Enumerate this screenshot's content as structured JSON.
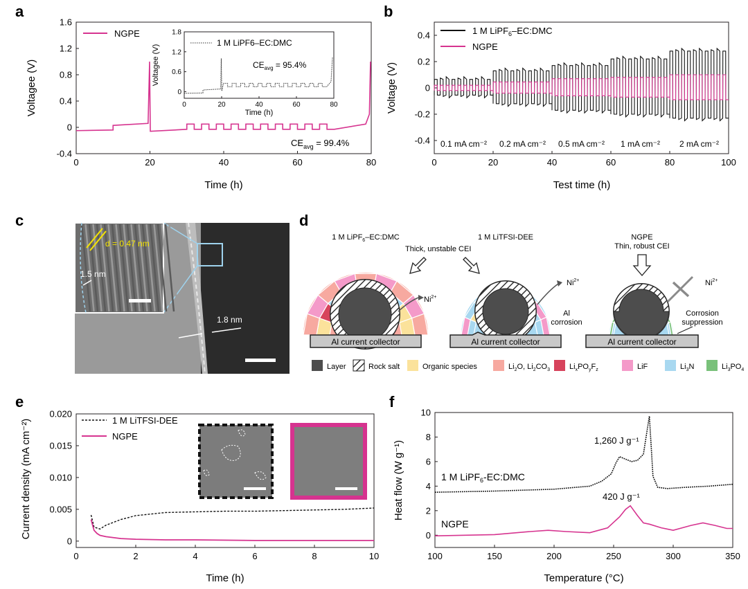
{
  "panels": {
    "a": {
      "letter": "a",
      "chart_data": {
        "type": "line",
        "xlabel": "Time (h)",
        "ylabel": "Voltagee (V)",
        "xlim": [
          0,
          80
        ],
        "ylim": [
          -0.4,
          1.6
        ],
        "xticks": [
          "0",
          "20",
          "40",
          "60",
          "80"
        ],
        "yticks": [
          "-0.4",
          "0",
          "0.4",
          "0.8",
          "1.2",
          "1.6"
        ],
        "legend": "NGPE",
        "annotation_main": "CE",
        "annotation_sub": "avg",
        "annotation_value": " = 99.4%",
        "series": [
          {
            "name": "NGPE",
            "color": "#d6338f",
            "style": "solid"
          }
        ],
        "inset": {
          "legend": "1 M LiPF6–EC:DMC",
          "xlabel": "Time (h)",
          "ylabel": "Voltagee (V)",
          "xlim": [
            0,
            80
          ],
          "ylim": [
            -0.2,
            1.8
          ],
          "xticks": [
            "0",
            "20",
            "40",
            "60",
            "80"
          ],
          "yticks": [
            "0",
            "0.6",
            "1.2",
            "1.8"
          ],
          "annotation_main": "CE",
          "annotation_sub": "avg",
          "annotation_value": " = 95.4%"
        }
      }
    },
    "b": {
      "letter": "b",
      "chart_data": {
        "type": "line",
        "xlabel": "Test time (h)",
        "ylabel": "Voltage (V)",
        "xlim": [
          0,
          100
        ],
        "ylim": [
          -0.5,
          0.5
        ],
        "xticks": [
          "0",
          "20",
          "40",
          "60",
          "80",
          "100"
        ],
        "yticks": [
          "-0.4",
          "-0.2",
          "0",
          "0.2",
          "0.4"
        ],
        "series": [
          {
            "name": "1 M LiPF6–EC:DMC",
            "color": "#111111",
            "style": "solid"
          },
          {
            "name": "NGPE",
            "color": "#d6338f",
            "style": "solid"
          }
        ],
        "rate_labels": [
          "0.1 mA cm⁻²",
          "0.2 mA cm⁻²",
          "0.5 mA cm⁻²",
          "1 mA cm⁻²",
          "2 mA cm⁻²"
        ]
      }
    },
    "c": {
      "letter": "c",
      "d_label": "d = 0.47 nm",
      "thin_label": "1.5 nm",
      "thick_label": "1.8 nm"
    },
    "d": {
      "letter": "d",
      "p1_title": "1 M LiPF6–EC:DMC",
      "p1_note": "Thick, unstable CEI",
      "p2_title": "1 M LiTFSI-DEE",
      "p3_title": "NGPE",
      "p3_note": "Thin, robust CEI",
      "ni": "Ni",
      "ni_sup": "2+",
      "al_corrosion_1": "Al",
      "al_corrosion_2": "corrosion",
      "suppression_1": "Corrosion",
      "suppression_2": "suppression",
      "collector": "Al current collector",
      "legend": [
        {
          "label": "Layer",
          "color": "#4d4d4d"
        },
        {
          "label": "Rock salt",
          "color": "hatch"
        },
        {
          "label": "Organic species",
          "color": "#fbe29b"
        },
        {
          "label": "Li2O, Li2CO3",
          "color": "#f7a9a0"
        },
        {
          "label": "LixPOyFz",
          "color": "#d7435c"
        },
        {
          "label": "LiF",
          "color": "#f49ac9"
        },
        {
          "label": "Li3N",
          "color": "#a8d8f0"
        },
        {
          "label": "Li3PO4",
          "color": "#79c17a"
        }
      ]
    },
    "e": {
      "letter": "e",
      "chart_data": {
        "type": "line",
        "xlabel": "Time (h)",
        "ylabel": "Current density (mA cm⁻²)",
        "xlim": [
          0,
          10
        ],
        "ylim": [
          -0.001,
          0.02
        ],
        "xticks": [
          "0",
          "2",
          "4",
          "6",
          "8",
          "10"
        ],
        "yticks": [
          "0",
          "0.005",
          "0.010",
          "0.015",
          "0.020"
        ],
        "series": [
          {
            "name": "1 M LiTFSI-DEE",
            "color": "#111111",
            "style": "dashed",
            "x": [
              0.5,
              0.6,
              0.8,
              1.0,
              1.5,
              2,
              3,
              4,
              5,
              6,
              7,
              8,
              9,
              10
            ],
            "y": [
              0.0041,
              0.0022,
              0.0019,
              0.0025,
              0.0034,
              0.004,
              0.0045,
              0.0046,
              0.0047,
              0.0047,
              0.0048,
              0.0049,
              0.005,
              0.0052
            ]
          },
          {
            "name": "NGPE",
            "color": "#d6338f",
            "style": "solid",
            "x": [
              0.5,
              0.55,
              0.6,
              0.7,
              0.8,
              1.0,
              1.5,
              2,
              3,
              4,
              6,
              8,
              10
            ],
            "y": [
              0.0034,
              0.0025,
              0.0017,
              0.0012,
              0.0009,
              0.0007,
              0.0004,
              0.0003,
              0.0002,
              0.0002,
              0.0001,
              0.0001,
              0.0001
            ]
          }
        ]
      }
    },
    "f": {
      "letter": "f",
      "chart_data": {
        "type": "line",
        "xlabel": "Temperature (°C)",
        "ylabel": "Heat flow (W g⁻¹)",
        "xlim": [
          100,
          350
        ],
        "ylim": [
          -1,
          10
        ],
        "xticks": [
          "100",
          "150",
          "200",
          "250",
          "300",
          "350"
        ],
        "yticks": [
          "0",
          "2",
          "4",
          "6",
          "8",
          "10"
        ],
        "series": [
          {
            "name": "1 M LiPF6-EC:DMC",
            "color": "#111111",
            "style": "dotted",
            "x": [
              100,
              150,
              200,
              230,
              240,
              248,
              252,
              255,
              260,
              265,
              270,
              275,
              278,
              280,
              283,
              287,
              295,
              310,
              330,
              350
            ],
            "y": [
              3.5,
              3.6,
              3.75,
              4.0,
              4.4,
              5.0,
              5.9,
              6.4,
              6.2,
              6.0,
              6.1,
              6.6,
              8.5,
              9.7,
              4.8,
              3.9,
              3.8,
              3.9,
              4.0,
              4.15
            ]
          },
          {
            "name": "NGPE",
            "color": "#d6338f",
            "style": "solid",
            "x": [
              100,
              150,
              180,
              195,
              210,
              230,
              245,
              255,
              260,
              264,
              270,
              275,
              280,
              290,
              300,
              315,
              325,
              335,
              345,
              350
            ],
            "y": [
              -0.05,
              0.05,
              0.3,
              0.4,
              0.3,
              0.2,
              0.6,
              1.5,
              2.1,
              2.4,
              1.6,
              1.0,
              0.9,
              0.6,
              0.4,
              0.8,
              1.0,
              0.8,
              0.55,
              0.55
            ]
          }
        ],
        "labels": [
          "1 M LiPF6-EC:DMC",
          "NGPE"
        ],
        "annotations": [
          "1,260 J g⁻¹",
          "420 J g⁻¹"
        ]
      }
    }
  }
}
